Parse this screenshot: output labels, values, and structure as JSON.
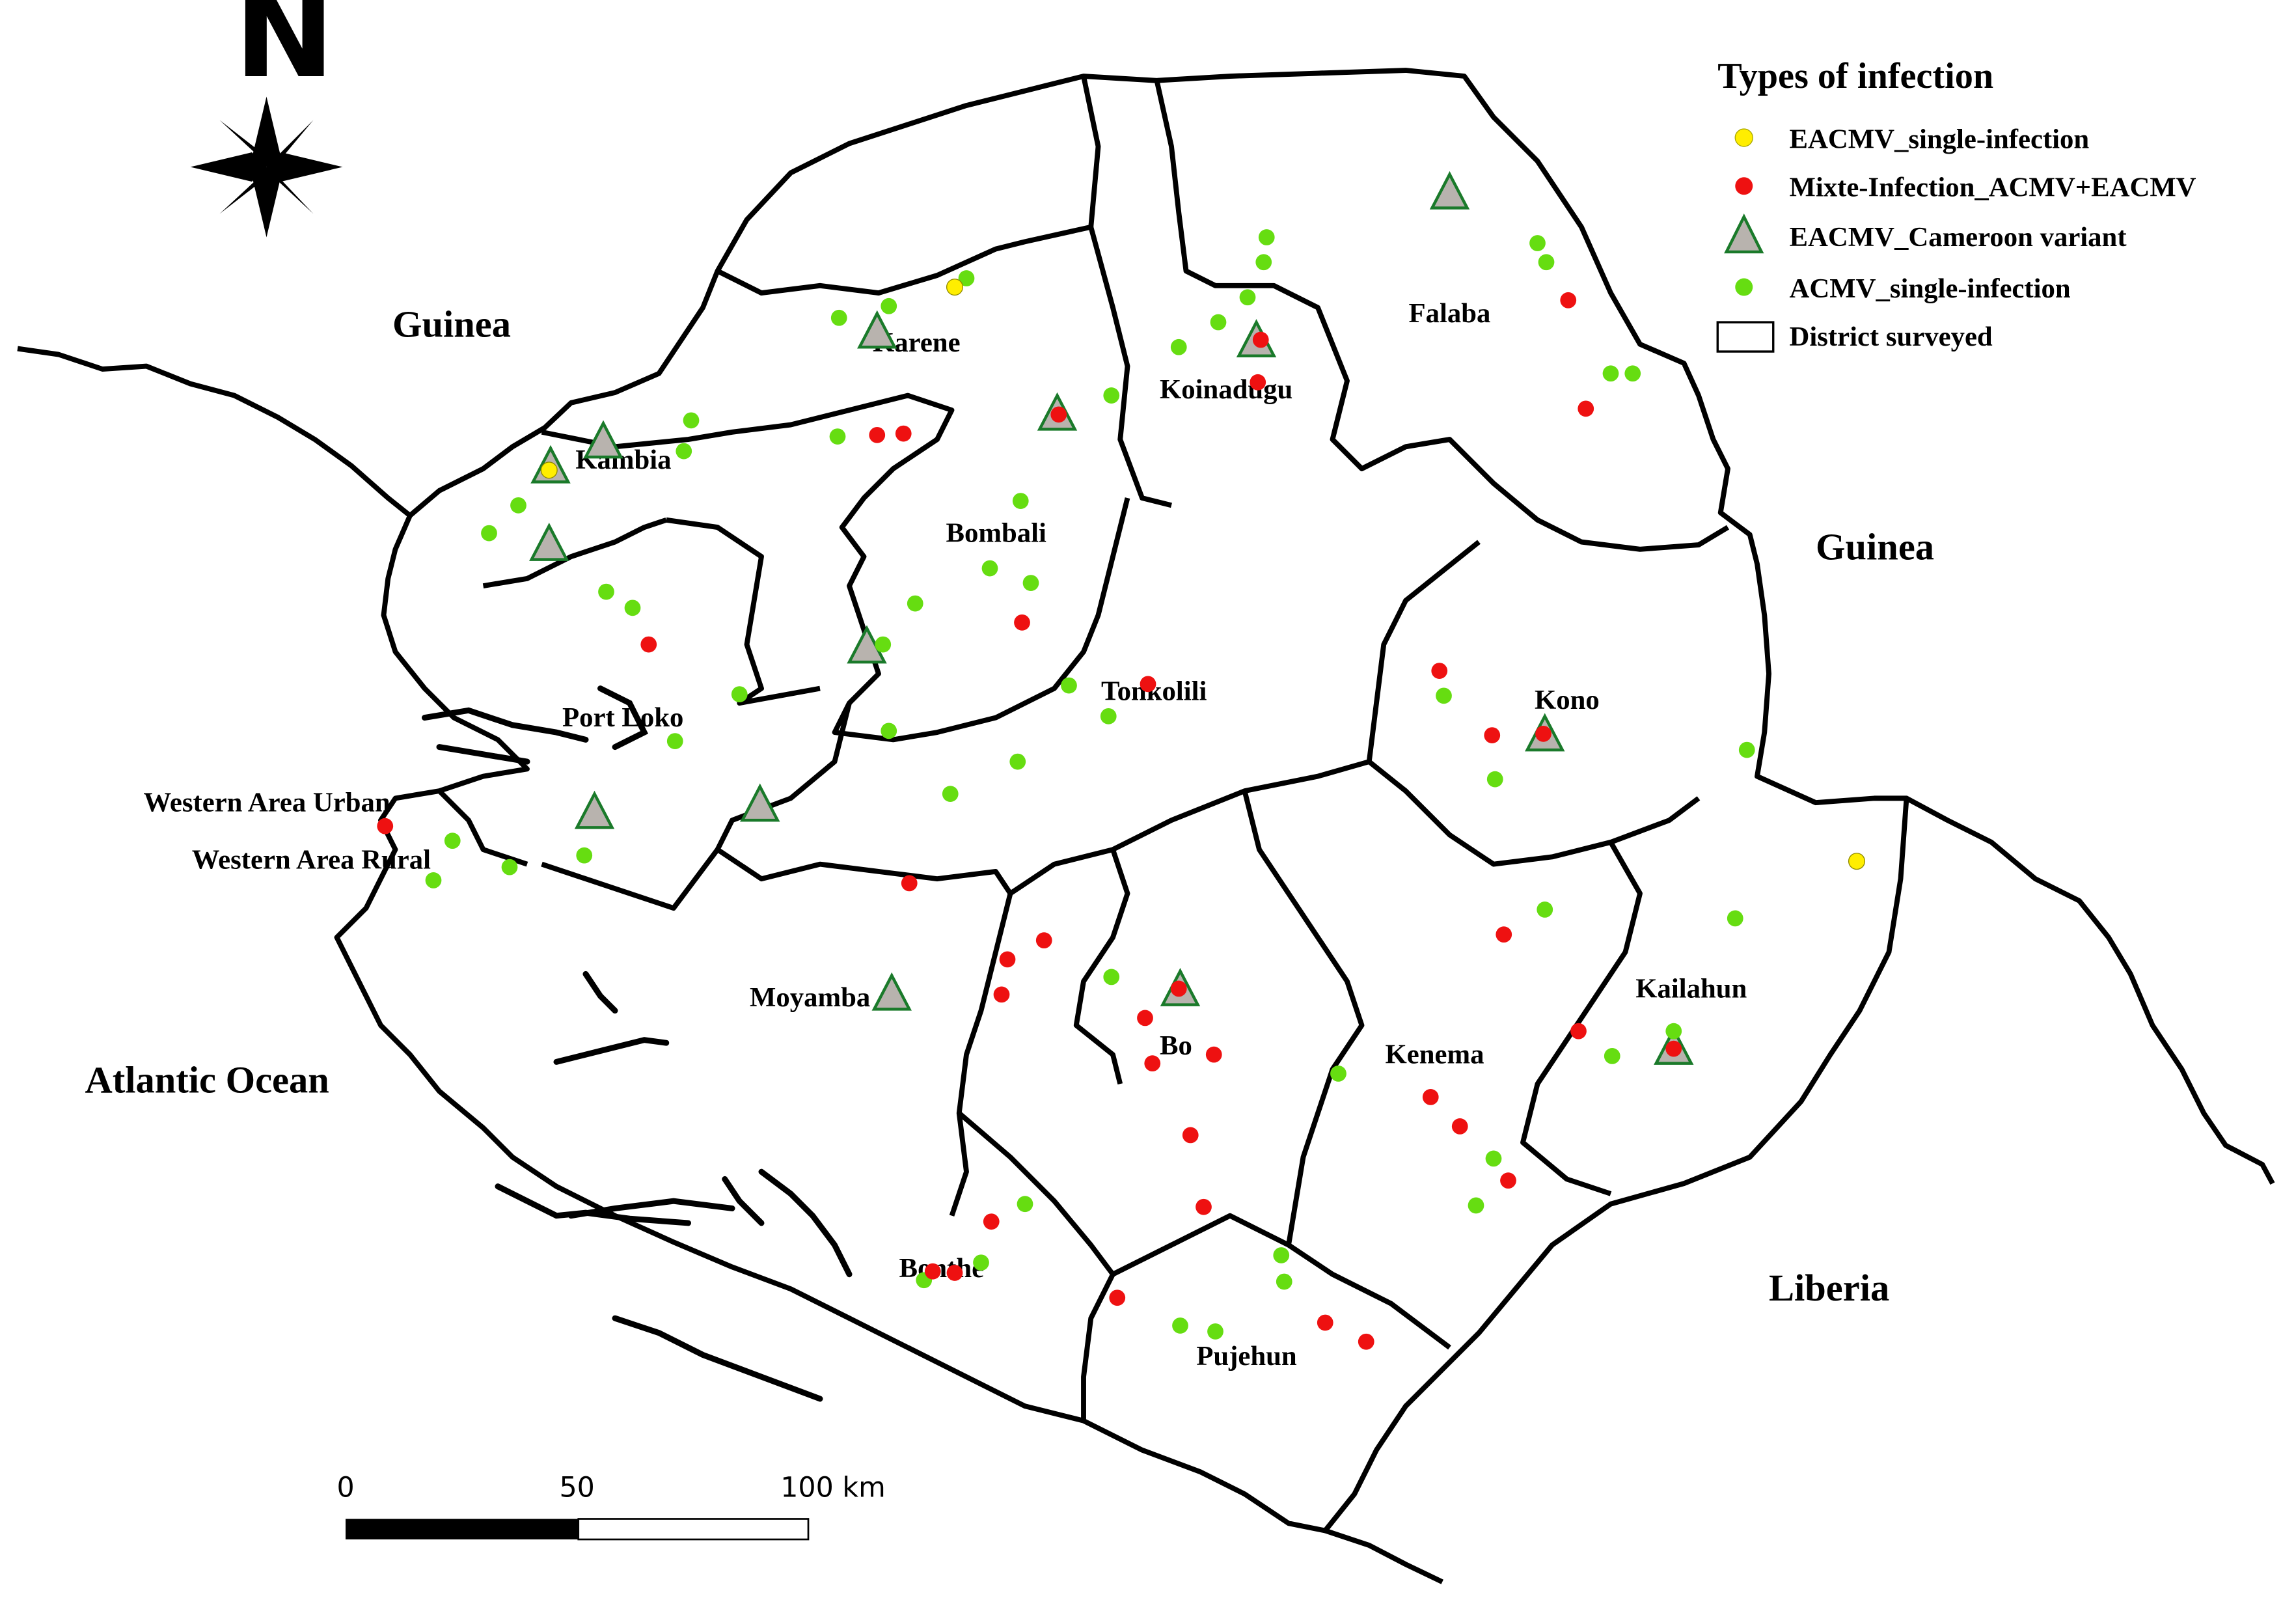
{
  "legend": {
    "title": "Types of infection",
    "items": [
      {
        "label": "EACMV_single-infection",
        "symbol": "circle",
        "color": "#ffee00"
      },
      {
        "label": "Mixte-Infection_ACMV+EACMV",
        "symbol": "circle",
        "color": "#ee1111"
      },
      {
        "label": "EACMV_Cameroon variant",
        "symbol": "triangle",
        "color": "#b8b3ae"
      },
      {
        "label": "ACMV_single-infection",
        "symbol": "circle",
        "color": "#66dd11"
      },
      {
        "label": "District surveyed",
        "symbol": "box",
        "color": "#ffffff"
      }
    ]
  },
  "north_label": "N",
  "countries": {
    "guinea_nw": "Guinea",
    "guinea_e": "Guinea",
    "liberia": "Liberia",
    "ocean": "Atlantic Ocean"
  },
  "districts": {
    "karene": "Karene",
    "koinadugu": "Koinadugu",
    "falaba": "Falaba",
    "kambia": "Kambia",
    "bombali": "Bombali",
    "tonkolili": "Tonkolili",
    "port_loko": "Port Loko",
    "kono": "Kono",
    "western_urban": "Western Area Urban",
    "western_rural": "Western Area Rural",
    "moyamba": "Moyamba",
    "bo": "Bo",
    "kenema": "Kenema",
    "kailahun": "Kailahun",
    "bonthe": "Bonthe",
    "pujehun": "Pujehun"
  },
  "scale_bar": {
    "labels": [
      "0",
      "50",
      "100 km"
    ]
  },
  "colors": {
    "yellow": "#ffee00",
    "red": "#ee1111",
    "green": "#66dd11",
    "triangle_fill": "#b8b3ae",
    "triangle_stroke": "#1a7a2a"
  }
}
